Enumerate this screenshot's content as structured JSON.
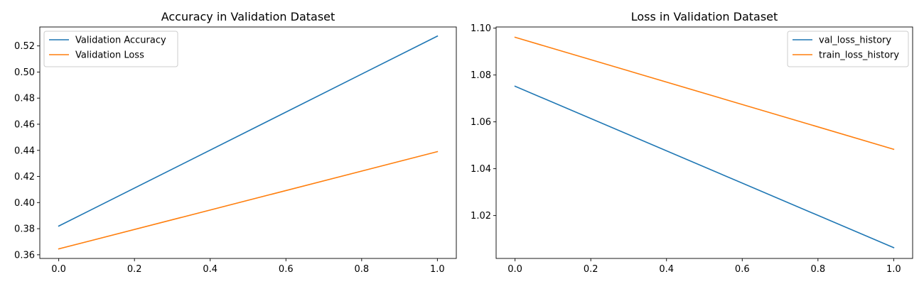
{
  "chart_data": [
    {
      "type": "line",
      "title": "Accuracy in Validation Dataset",
      "xlabel": "",
      "ylabel": "",
      "xlim": [
        -0.05,
        1.05
      ],
      "ylim": [
        0.3572,
        0.5345
      ],
      "xticks": [
        0.0,
        0.2,
        0.4,
        0.6,
        0.8,
        1.0
      ],
      "xtick_labels": [
        "0.0",
        "0.2",
        "0.4",
        "0.6",
        "0.8",
        "1.0"
      ],
      "yticks": [
        0.36,
        0.38,
        0.4,
        0.42,
        0.44,
        0.46,
        0.48,
        0.5,
        0.52
      ],
      "ytick_labels": [
        "0.36",
        "0.38",
        "0.40",
        "0.42",
        "0.44",
        "0.46",
        "0.48",
        "0.50",
        "0.52"
      ],
      "grid": false,
      "legend_position": "top-left",
      "series": [
        {
          "name": "Validation Accuracy",
          "color": "#1f77b4",
          "x": [
            0,
            1
          ],
          "y": [
            0.382,
            0.5275
          ]
        },
        {
          "name": "Validation Loss",
          "color": "#ff7f0e",
          "x": [
            0,
            1
          ],
          "y": [
            0.3645,
            0.439
          ]
        }
      ]
    },
    {
      "type": "line",
      "title": "Loss in Validation Dataset",
      "xlabel": "",
      "ylabel": "",
      "xlim": [
        -0.05,
        1.05
      ],
      "ylim": [
        1.0017,
        1.1005
      ],
      "xticks": [
        0.0,
        0.2,
        0.4,
        0.6,
        0.8,
        1.0
      ],
      "xtick_labels": [
        "0.0",
        "0.2",
        "0.4",
        "0.6",
        "0.8",
        "1.0"
      ],
      "yticks": [
        1.02,
        1.04,
        1.06,
        1.08,
        1.1
      ],
      "ytick_labels": [
        "1.02",
        "1.04",
        "1.06",
        "1.08",
        "1.10"
      ],
      "grid": false,
      "legend_position": "top-right",
      "series": [
        {
          "name": "val_loss_history",
          "color": "#1f77b4",
          "x": [
            0,
            1
          ],
          "y": [
            1.0752,
            1.0063
          ]
        },
        {
          "name": "train_loss_history",
          "color": "#ff7f0e",
          "x": [
            0,
            1
          ],
          "y": [
            1.0961,
            1.0483
          ]
        }
      ]
    }
  ]
}
